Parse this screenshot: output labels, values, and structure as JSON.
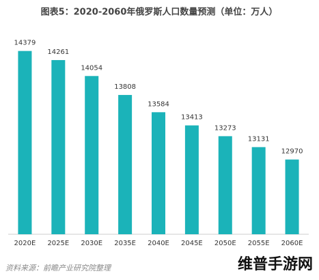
{
  "chart_data": {
    "type": "bar",
    "title": "图表5：2020-2060年俄罗斯人口数量预测（单位：万人）",
    "categories": [
      "2020E",
      "2025E",
      "2030E",
      "2035E",
      "2040E",
      "2045E",
      "2050E",
      "2055E",
      "2060E"
    ],
    "values": [
      14379,
      14261,
      14054,
      13808,
      13584,
      13413,
      13273,
      13131,
      12970
    ],
    "color": "#1bb3b9",
    "ylim": [
      12000,
      14500
    ],
    "source": "资料来源：前瞻产业研究院整理",
    "watermark": "维普手游网"
  }
}
